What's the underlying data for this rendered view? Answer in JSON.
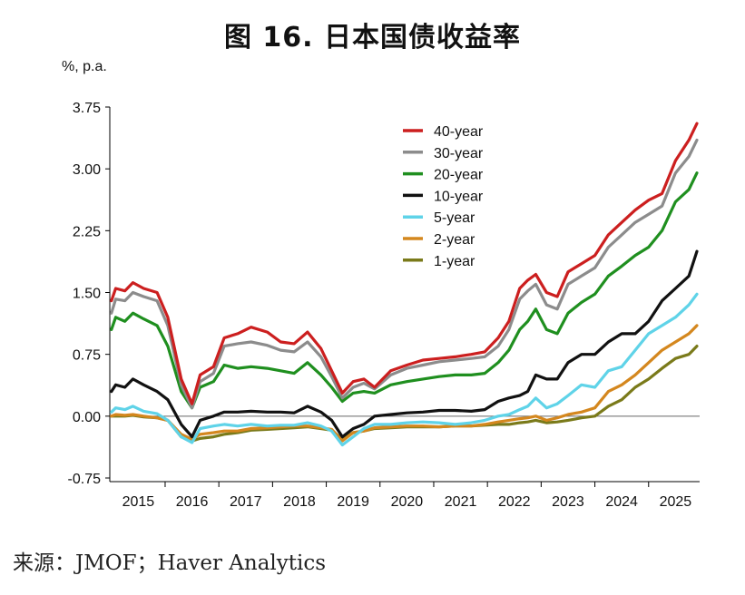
{
  "colors": {
    "40y": "#cc1f1f",
    "30y": "#8c8c8c",
    "20y": "#1f8f1f",
    "10y": "#111111",
    "5y": "#5fd3e8",
    "2y": "#d4871e",
    "1y": "#7a7a1a"
  },
  "chart_data": {
    "type": "line",
    "title": "图 16. 日本国债收益率",
    "unit_label": "%, p.a.",
    "source": "来源：JMOF；Haver Analytics",
    "xlabel": "",
    "ylabel": "",
    "xlim": [
      2014.97,
      2025.95
    ],
    "ylim": [
      -0.75,
      3.75
    ],
    "yticks": [
      "3.75",
      "3.00",
      "2.25",
      "1.50",
      "0.75",
      "0.00",
      "-0.75"
    ],
    "xticks": [
      "2015",
      "2016",
      "2017",
      "2018",
      "2019",
      "2020",
      "2021",
      "2022",
      "2023",
      "2024",
      "2025"
    ],
    "grid": false,
    "legend": "top-right",
    "series": [
      {
        "name": "40-year",
        "color_key": "40y",
        "x": [
          2015.0,
          2015.08,
          2015.25,
          2015.4,
          2015.6,
          2015.85,
          2016.05,
          2016.3,
          2016.5,
          2016.65,
          2016.9,
          2017.1,
          2017.35,
          2017.6,
          2017.9,
          2018.15,
          2018.4,
          2018.65,
          2018.9,
          2019.1,
          2019.3,
          2019.5,
          2019.7,
          2019.9,
          2020.2,
          2020.5,
          2020.8,
          2021.1,
          2021.4,
          2021.7,
          2021.95,
          2022.2,
          2022.4,
          2022.6,
          2022.75,
          2022.9,
          2023.1,
          2023.3,
          2023.5,
          2023.75,
          2024.0,
          2024.25,
          2024.5,
          2024.75,
          2025.0,
          2025.25,
          2025.5,
          2025.75,
          2025.9
        ],
        "y": [
          1.4,
          1.55,
          1.52,
          1.62,
          1.55,
          1.5,
          1.2,
          0.45,
          0.15,
          0.5,
          0.6,
          0.95,
          1.0,
          1.08,
          1.02,
          0.9,
          0.88,
          1.02,
          0.82,
          0.55,
          0.28,
          0.42,
          0.45,
          0.35,
          0.55,
          0.62,
          0.68,
          0.7,
          0.72,
          0.75,
          0.78,
          0.95,
          1.15,
          1.55,
          1.65,
          1.72,
          1.5,
          1.45,
          1.75,
          1.85,
          1.95,
          2.2,
          2.35,
          2.5,
          2.62,
          2.7,
          3.1,
          3.35,
          3.55
        ]
      },
      {
        "name": "30-year",
        "color_key": "30y",
        "x": [
          2015.0,
          2015.08,
          2015.25,
          2015.4,
          2015.6,
          2015.85,
          2016.05,
          2016.3,
          2016.5,
          2016.65,
          2016.9,
          2017.1,
          2017.35,
          2017.6,
          2017.9,
          2018.15,
          2018.4,
          2018.65,
          2018.9,
          2019.1,
          2019.3,
          2019.5,
          2019.7,
          2019.9,
          2020.2,
          2020.5,
          2020.8,
          2021.1,
          2021.4,
          2021.7,
          2021.95,
          2022.2,
          2022.4,
          2022.6,
          2022.75,
          2022.9,
          2023.1,
          2023.3,
          2023.5,
          2023.75,
          2024.0,
          2024.25,
          2024.5,
          2024.75,
          2025.0,
          2025.25,
          2025.5,
          2025.75,
          2025.9
        ],
        "y": [
          1.25,
          1.42,
          1.4,
          1.5,
          1.45,
          1.4,
          1.1,
          0.38,
          0.1,
          0.42,
          0.52,
          0.85,
          0.88,
          0.9,
          0.86,
          0.8,
          0.78,
          0.9,
          0.72,
          0.48,
          0.22,
          0.35,
          0.4,
          0.33,
          0.5,
          0.58,
          0.62,
          0.66,
          0.68,
          0.7,
          0.72,
          0.85,
          1.05,
          1.42,
          1.52,
          1.6,
          1.35,
          1.3,
          1.6,
          1.7,
          1.8,
          2.05,
          2.2,
          2.35,
          2.45,
          2.55,
          2.95,
          3.15,
          3.35
        ]
      },
      {
        "name": "20-year",
        "color_key": "20y",
        "x": [
          2015.0,
          2015.08,
          2015.25,
          2015.4,
          2015.6,
          2015.85,
          2016.05,
          2016.3,
          2016.5,
          2016.65,
          2016.9,
          2017.1,
          2017.35,
          2017.6,
          2017.9,
          2018.15,
          2018.4,
          2018.65,
          2018.9,
          2019.1,
          2019.3,
          2019.5,
          2019.7,
          2019.9,
          2020.2,
          2020.5,
          2020.8,
          2021.1,
          2021.4,
          2021.7,
          2021.95,
          2022.2,
          2022.4,
          2022.6,
          2022.75,
          2022.9,
          2023.1,
          2023.3,
          2023.5,
          2023.75,
          2024.0,
          2024.25,
          2024.5,
          2024.75,
          2025.0,
          2025.25,
          2025.5,
          2025.75,
          2025.9
        ],
        "y": [
          1.05,
          1.2,
          1.15,
          1.25,
          1.18,
          1.1,
          0.85,
          0.3,
          0.1,
          0.35,
          0.42,
          0.62,
          0.58,
          0.6,
          0.58,
          0.55,
          0.52,
          0.65,
          0.5,
          0.35,
          0.18,
          0.28,
          0.3,
          0.28,
          0.38,
          0.42,
          0.45,
          0.48,
          0.5,
          0.5,
          0.52,
          0.65,
          0.8,
          1.05,
          1.15,
          1.3,
          1.05,
          1.0,
          1.25,
          1.38,
          1.48,
          1.7,
          1.82,
          1.95,
          2.05,
          2.25,
          2.6,
          2.75,
          2.95
        ]
      },
      {
        "name": "10-year",
        "color_key": "10y",
        "x": [
          2015.0,
          2015.08,
          2015.25,
          2015.4,
          2015.6,
          2015.85,
          2016.05,
          2016.3,
          2016.5,
          2016.65,
          2016.9,
          2017.1,
          2017.35,
          2017.6,
          2017.9,
          2018.15,
          2018.4,
          2018.65,
          2018.9,
          2019.1,
          2019.3,
          2019.5,
          2019.7,
          2019.9,
          2020.2,
          2020.5,
          2020.8,
          2021.1,
          2021.4,
          2021.7,
          2021.95,
          2022.2,
          2022.4,
          2022.6,
          2022.75,
          2022.9,
          2023.1,
          2023.3,
          2023.5,
          2023.75,
          2024.0,
          2024.25,
          2024.5,
          2024.75,
          2025.0,
          2025.25,
          2025.5,
          2025.75,
          2025.9
        ],
        "y": [
          0.3,
          0.38,
          0.35,
          0.45,
          0.38,
          0.3,
          0.2,
          -0.1,
          -0.25,
          -0.05,
          0.0,
          0.05,
          0.05,
          0.06,
          0.05,
          0.05,
          0.04,
          0.12,
          0.05,
          -0.05,
          -0.25,
          -0.15,
          -0.1,
          0.0,
          0.02,
          0.04,
          0.05,
          0.07,
          0.07,
          0.06,
          0.08,
          0.18,
          0.22,
          0.25,
          0.3,
          0.5,
          0.45,
          0.45,
          0.65,
          0.75,
          0.75,
          0.9,
          1.0,
          1.0,
          1.15,
          1.4,
          1.55,
          1.7,
          2.0
        ]
      },
      {
        "name": "5-year",
        "color_key": "5y",
        "x": [
          2015.0,
          2015.08,
          2015.25,
          2015.4,
          2015.6,
          2015.85,
          2016.05,
          2016.3,
          2016.5,
          2016.65,
          2016.9,
          2017.1,
          2017.35,
          2017.6,
          2017.9,
          2018.15,
          2018.4,
          2018.65,
          2018.9,
          2019.1,
          2019.3,
          2019.5,
          2019.7,
          2019.9,
          2020.2,
          2020.5,
          2020.8,
          2021.1,
          2021.4,
          2021.7,
          2021.95,
          2022.2,
          2022.4,
          2022.6,
          2022.75,
          2022.9,
          2023.1,
          2023.3,
          2023.5,
          2023.75,
          2024.0,
          2024.25,
          2024.5,
          2024.75,
          2025.0,
          2025.25,
          2025.5,
          2025.75,
          2025.9
        ],
        "y": [
          0.05,
          0.1,
          0.08,
          0.12,
          0.06,
          0.03,
          -0.05,
          -0.25,
          -0.32,
          -0.15,
          -0.12,
          -0.1,
          -0.12,
          -0.1,
          -0.12,
          -0.11,
          -0.11,
          -0.08,
          -0.12,
          -0.18,
          -0.35,
          -0.25,
          -0.15,
          -0.1,
          -0.1,
          -0.08,
          -0.07,
          -0.08,
          -0.1,
          -0.08,
          -0.05,
          0.0,
          0.02,
          0.08,
          0.12,
          0.22,
          0.1,
          0.15,
          0.25,
          0.38,
          0.35,
          0.55,
          0.6,
          0.8,
          1.0,
          1.1,
          1.2,
          1.35,
          1.48
        ]
      },
      {
        "name": "2-year",
        "color_key": "2y",
        "x": [
          2015.0,
          2015.08,
          2015.25,
          2015.4,
          2015.6,
          2015.85,
          2016.05,
          2016.3,
          2016.5,
          2016.65,
          2016.9,
          2017.1,
          2017.35,
          2017.6,
          2017.9,
          2018.15,
          2018.4,
          2018.65,
          2018.9,
          2019.1,
          2019.3,
          2019.5,
          2019.7,
          2019.9,
          2020.2,
          2020.5,
          2020.8,
          2021.1,
          2021.4,
          2021.7,
          2021.95,
          2022.2,
          2022.4,
          2022.6,
          2022.75,
          2022.9,
          2023.1,
          2023.3,
          2023.5,
          2023.75,
          2024.0,
          2024.25,
          2024.5,
          2024.75,
          2025.0,
          2025.25,
          2025.5,
          2025.75,
          2025.9
        ],
        "y": [
          0.0,
          0.02,
          0.01,
          0.02,
          0.0,
          -0.02,
          -0.05,
          -0.22,
          -0.28,
          -0.22,
          -0.2,
          -0.18,
          -0.18,
          -0.15,
          -0.14,
          -0.13,
          -0.12,
          -0.12,
          -0.14,
          -0.16,
          -0.3,
          -0.2,
          -0.18,
          -0.14,
          -0.13,
          -0.12,
          -0.12,
          -0.13,
          -0.12,
          -0.12,
          -0.1,
          -0.07,
          -0.05,
          -0.03,
          -0.02,
          0.0,
          -0.05,
          -0.02,
          0.02,
          0.05,
          0.1,
          0.3,
          0.38,
          0.5,
          0.65,
          0.8,
          0.9,
          1.0,
          1.1
        ]
      },
      {
        "name": "1-year",
        "color_key": "1y",
        "x": [
          2015.0,
          2015.08,
          2015.25,
          2015.4,
          2015.6,
          2015.85,
          2016.05,
          2016.3,
          2016.5,
          2016.65,
          2016.9,
          2017.1,
          2017.35,
          2017.6,
          2017.9,
          2018.15,
          2018.4,
          2018.65,
          2018.9,
          2019.1,
          2019.3,
          2019.5,
          2019.7,
          2019.9,
          2020.2,
          2020.5,
          2020.8,
          2021.1,
          2021.4,
          2021.7,
          2021.95,
          2022.2,
          2022.4,
          2022.6,
          2022.75,
          2022.9,
          2023.1,
          2023.3,
          2023.5,
          2023.75,
          2024.0,
          2024.25,
          2024.5,
          2024.75,
          2025.0,
          2025.25,
          2025.5,
          2025.75,
          2025.9
        ],
        "y": [
          0.0,
          0.0,
          0.0,
          0.01,
          -0.01,
          -0.02,
          -0.05,
          -0.25,
          -0.3,
          -0.27,
          -0.25,
          -0.22,
          -0.2,
          -0.17,
          -0.16,
          -0.15,
          -0.14,
          -0.13,
          -0.15,
          -0.17,
          -0.28,
          -0.2,
          -0.18,
          -0.15,
          -0.14,
          -0.13,
          -0.13,
          -0.13,
          -0.12,
          -0.12,
          -0.11,
          -0.1,
          -0.1,
          -0.08,
          -0.07,
          -0.05,
          -0.08,
          -0.07,
          -0.05,
          -0.02,
          0.0,
          0.12,
          0.2,
          0.35,
          0.45,
          0.58,
          0.7,
          0.75,
          0.85
        ]
      }
    ]
  }
}
